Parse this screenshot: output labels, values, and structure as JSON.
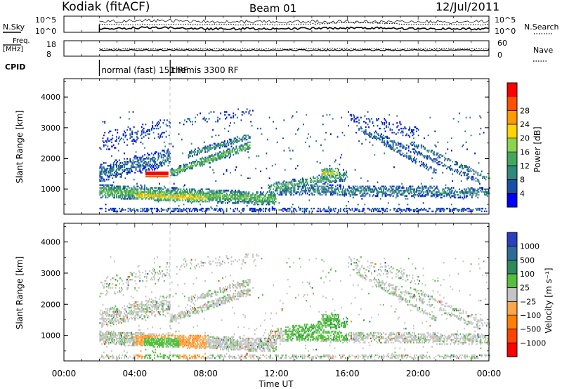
{
  "header": {
    "station": "Kodiak (fitACF)",
    "beam": "Beam 01",
    "date": "12/Jul/2011"
  },
  "status_panels": {
    "noise": {
      "left_label": "N.Sky",
      "right_label": "N.Search",
      "left_ticks": [
        "10^5",
        "10^0"
      ],
      "right_ticks": [
        "10^5",
        "10^0"
      ]
    },
    "freq": {
      "left_label": "Freq.",
      "left_unit": "[MHz]",
      "right_label": "Nave",
      "left_ticks": [
        "18",
        "8"
      ],
      "right_ticks": [
        "60",
        "0"
      ]
    },
    "cpid": {
      "label": "CPID",
      "segments": [
        {
          "start_h": 2.0,
          "end_h": 6.0,
          "text": "normal (fast) 151 RF"
        },
        {
          "start_h": 6.0,
          "end_h": 24.0,
          "text": "themis 3300 RF"
        }
      ]
    }
  },
  "chart_data": [
    {
      "type": "heatmap",
      "name": "power",
      "ylabel": "Slant Range [km]",
      "y_ticks": [
        "1000",
        "2000",
        "3000",
        "4000"
      ],
      "ylim": [
        180,
        4600
      ],
      "xlim": [
        0,
        24
      ],
      "colorbar": {
        "label": "Power [dB]",
        "ticks": [
          "4",
          "8",
          "12",
          "16",
          "20",
          "24",
          "28"
        ],
        "colors": [
          "#0000ff",
          "#1a4fa8",
          "#2e8a7a",
          "#44a85c",
          "#8ed44a",
          "#ffd400",
          "#ff9a00",
          "#ff5000",
          "#ff0000"
        ]
      }
    },
    {
      "type": "heatmap",
      "name": "velocity",
      "ylabel": "Slant Range [km]",
      "y_ticks": [
        "1000",
        "2000",
        "3000",
        "4000"
      ],
      "ylim": [
        180,
        4600
      ],
      "xlim": [
        0,
        24
      ],
      "colorbar": {
        "label": "Velocity [m s⁻¹]",
        "ticks": [
          "1000",
          "500",
          "100",
          "25",
          "−25",
          "−100",
          "−500",
          "−1000"
        ],
        "colors": [
          "#2a3fbf",
          "#2f6b9a",
          "#2e8a5c",
          "#55c040",
          "#c4c4c4",
          "#ffa64d",
          "#ff7f00",
          "#ff4400",
          "#ff0000"
        ]
      }
    }
  ],
  "x_axis": {
    "label": "Time UT",
    "ticks": [
      "00:00",
      "04:00",
      "08:00",
      "12:00",
      "16:00",
      "20:00",
      "00:00"
    ]
  }
}
